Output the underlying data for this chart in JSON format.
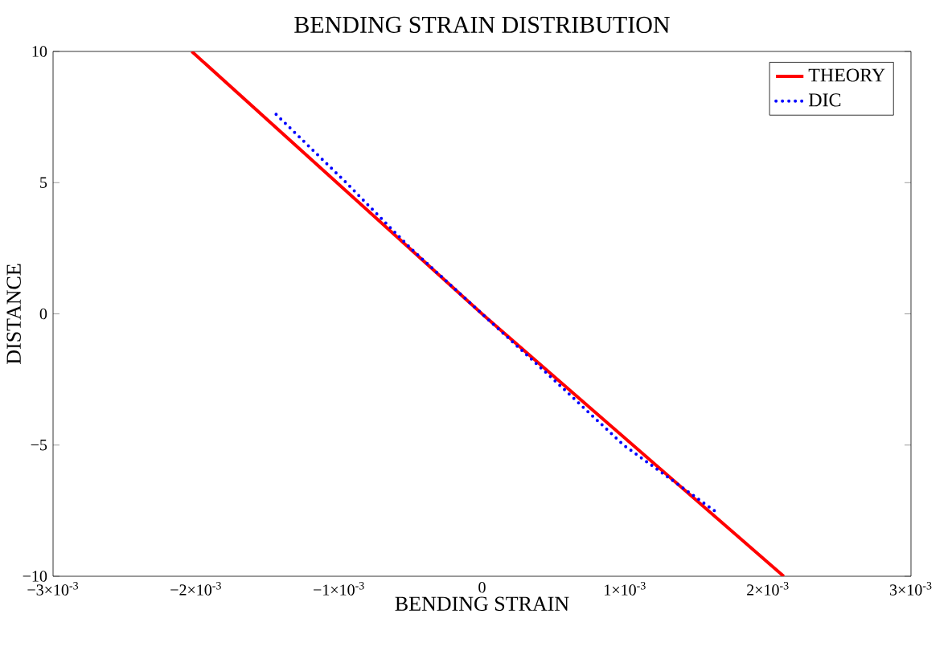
{
  "chart_data": {
    "type": "line",
    "title": "BENDING STRAIN DISTRIBUTION",
    "xlabel": "BENDING STRAIN",
    "ylabel": "DISTANCE",
    "series": [
      {
        "name": "THEORY",
        "color": "#ff0000",
        "line_style": "solid",
        "x": [
          -0.00203,
          0,
          0.00211
        ],
        "values": [
          10,
          0,
          -10
        ]
      },
      {
        "name": "DIC",
        "color": "#0000ff",
        "line_style": "dotted",
        "x": [
          -0.00144,
          -0.00095,
          -0.0005,
          0,
          0.0005,
          0.00099,
          0.00165
        ],
        "values": [
          7.6,
          5,
          2.5,
          0,
          -2.5,
          -5,
          -7.6
        ]
      }
    ],
    "xlim": [
      -0.003,
      0.003
    ],
    "ylim": [
      -10,
      10
    ],
    "xticks": [
      {
        "value": -0.003,
        "label": "−3×10$^{-3}$"
      },
      {
        "value": -0.002,
        "label": "−2×10$^{-3}$"
      },
      {
        "value": -0.001,
        "label": "−1×10$^{-3}$"
      },
      0,
      {
        "value": 0.001,
        "label": "1×10$^{-3}$"
      },
      {
        "value": 0.002,
        "label": "2×10$^{-3}$"
      },
      {
        "value": 0.003,
        "label": "3×10$^{-3}$"
      }
    ],
    "yticks": [
      {
        "value": -10,
        "label": "−10"
      },
      {
        "value": -5,
        "label": "−5"
      },
      0,
      5,
      10
    ],
    "grid": false,
    "legend": "top right",
    "marker": "none"
  }
}
